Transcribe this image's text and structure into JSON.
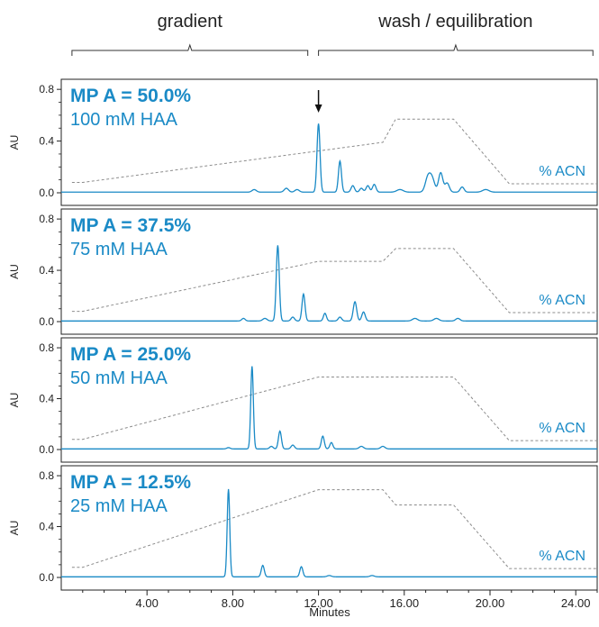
{
  "chart_data": {
    "type": "line",
    "xlabel": "Minutes",
    "ylabel": "AU",
    "xlim": [
      0,
      25
    ],
    "ylim": [
      0,
      0.85
    ],
    "x_ticks": [
      "4.00",
      "8.00",
      "12.00",
      "16.00",
      "20.00",
      "24.00"
    ],
    "x_tick_values": [
      4,
      8,
      12,
      16,
      20,
      24
    ],
    "y_ticks": [
      "0.0",
      "0.4",
      "0.8"
    ],
    "y_tick_values": [
      0,
      0.4,
      0.8
    ],
    "regions": [
      {
        "label": "gradient",
        "x_start": 0.5,
        "x_end": 11.5
      },
      {
        "label": "wash / equilibration",
        "x_start": 12.0,
        "x_end": 24.8
      }
    ],
    "acn_label": "% ACN",
    "colors": {
      "trace": "#1a8ac6",
      "acn": "#8c8c8c",
      "label": "#1a8ac6"
    },
    "panels": [
      {
        "mp_label": "MP A = 50.0%",
        "haa_label": "100 mM HAA",
        "arrow_x": 12.0,
        "peaks": [
          [
            9.0,
            0.02,
            0.1
          ],
          [
            10.5,
            0.03,
            0.1
          ],
          [
            11.0,
            0.02,
            0.1
          ],
          [
            12.0,
            0.53,
            0.07
          ],
          [
            13.0,
            0.24,
            0.07
          ],
          [
            13.6,
            0.05,
            0.08
          ],
          [
            14.0,
            0.03,
            0.08
          ],
          [
            14.3,
            0.05,
            0.08
          ],
          [
            14.6,
            0.06,
            0.08
          ],
          [
            15.8,
            0.02,
            0.15
          ],
          [
            17.1,
            0.11,
            0.12
          ],
          [
            17.3,
            0.1,
            0.12
          ],
          [
            17.7,
            0.15,
            0.1
          ],
          [
            18.0,
            0.07,
            0.1
          ],
          [
            18.7,
            0.04,
            0.09
          ],
          [
            19.8,
            0.02,
            0.15
          ]
        ],
        "acn_path": [
          [
            0.5,
            0.08
          ],
          [
            1.0,
            0.08
          ],
          [
            15.0,
            0.39
          ],
          [
            15.6,
            0.57
          ],
          [
            18.3,
            0.57
          ],
          [
            20.9,
            0.07
          ],
          [
            25.0,
            0.07
          ]
        ]
      },
      {
        "mp_label": "MP A = 37.5%",
        "haa_label": "75 mM HAA",
        "peaks": [
          [
            8.5,
            0.02,
            0.08
          ],
          [
            9.5,
            0.02,
            0.1
          ],
          [
            10.1,
            0.59,
            0.07
          ],
          [
            10.8,
            0.03,
            0.08
          ],
          [
            11.3,
            0.21,
            0.07
          ],
          [
            12.3,
            0.06,
            0.07
          ],
          [
            13.0,
            0.03,
            0.08
          ],
          [
            13.7,
            0.15,
            0.08
          ],
          [
            14.1,
            0.07,
            0.08
          ],
          [
            16.5,
            0.02,
            0.12
          ],
          [
            17.5,
            0.02,
            0.12
          ],
          [
            18.5,
            0.02,
            0.1
          ]
        ],
        "acn_path": [
          [
            0.5,
            0.08
          ],
          [
            1.0,
            0.08
          ],
          [
            12.0,
            0.47
          ],
          [
            15.0,
            0.47
          ],
          [
            15.6,
            0.57
          ],
          [
            18.3,
            0.57
          ],
          [
            20.9,
            0.07
          ],
          [
            25.0,
            0.07
          ]
        ]
      },
      {
        "mp_label": "MP A = 25.0%",
        "haa_label": "50 mM HAA",
        "peaks": [
          [
            7.8,
            0.01,
            0.08
          ],
          [
            8.9,
            0.65,
            0.06
          ],
          [
            9.8,
            0.02,
            0.08
          ],
          [
            10.2,
            0.14,
            0.07
          ],
          [
            10.8,
            0.03,
            0.08
          ],
          [
            12.2,
            0.1,
            0.07
          ],
          [
            12.6,
            0.05,
            0.07
          ],
          [
            14.0,
            0.02,
            0.1
          ],
          [
            15.0,
            0.02,
            0.1
          ]
        ],
        "acn_path": [
          [
            0.5,
            0.08
          ],
          [
            1.0,
            0.08
          ],
          [
            12.0,
            0.57
          ],
          [
            18.3,
            0.57
          ],
          [
            20.9,
            0.07
          ],
          [
            25.0,
            0.07
          ]
        ]
      },
      {
        "mp_label": "MP A = 12.5%",
        "haa_label": "25 mM HAA",
        "peaks": [
          [
            7.8,
            0.69,
            0.06
          ],
          [
            9.4,
            0.09,
            0.07
          ],
          [
            11.2,
            0.08,
            0.07
          ],
          [
            12.5,
            0.01,
            0.1
          ],
          [
            14.5,
            0.01,
            0.1
          ]
        ],
        "acn_path": [
          [
            0.5,
            0.08
          ],
          [
            1.0,
            0.08
          ],
          [
            12.0,
            0.69
          ],
          [
            15.0,
            0.69
          ],
          [
            15.6,
            0.57
          ],
          [
            18.3,
            0.57
          ],
          [
            20.9,
            0.07
          ],
          [
            25.0,
            0.07
          ]
        ]
      }
    ]
  }
}
